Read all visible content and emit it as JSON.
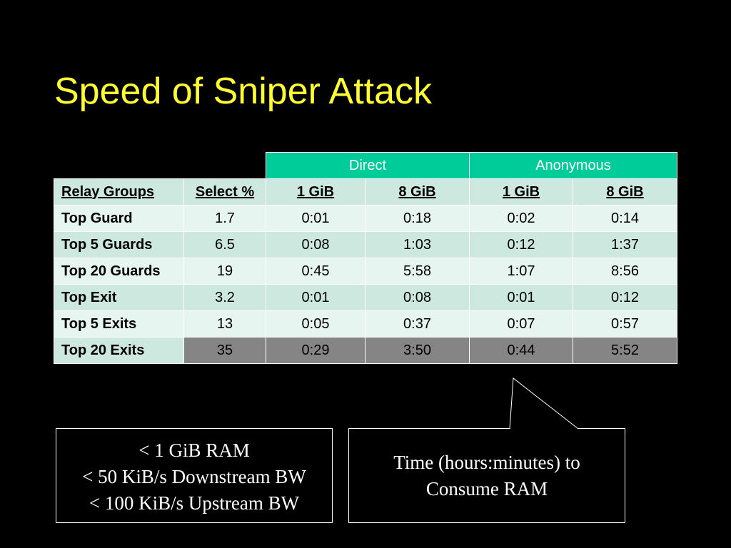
{
  "slide": {
    "title": "Speed of Sniper Attack"
  },
  "table": {
    "group_headers": [
      "Direct",
      "Anonymous"
    ],
    "column_headers": [
      "Relay Groups",
      "Select %",
      "1 GiB",
      "8 GiB",
      "1 GiB",
      "8 GiB"
    ],
    "rows": [
      [
        "Top Guard",
        "1.7",
        "0:01",
        "0:18",
        "0:02",
        "0:14"
      ],
      [
        "Top 5 Guards",
        "6.5",
        "0:08",
        "1:03",
        "0:12",
        "1:37"
      ],
      [
        "Top 20 Guards",
        "19",
        "0:45",
        "5:58",
        "1:07",
        "8:56"
      ],
      [
        "Top Exit",
        "3.2",
        "0:01",
        "0:08",
        "0:01",
        "0:12"
      ],
      [
        "Top 5 Exits",
        "13",
        "0:05",
        "0:37",
        "0:07",
        "0:57"
      ],
      [
        "Top 20 Exits",
        "35",
        "0:29",
        "3:50",
        "0:44",
        "5:52"
      ]
    ]
  },
  "callouts": {
    "ram_box": {
      "lines": [
        "< 1 GiB RAM",
        "< 50 KiB/s Downstream BW",
        "< 100 KiB/s Upstream BW"
      ]
    },
    "time_box": {
      "lines": [
        "Time (hours:minutes) to",
        "Consume RAM"
      ]
    }
  },
  "colors": {
    "background": "#000000",
    "title": "#ffff33",
    "group_header": "#00cc99",
    "row_light": "#e6f5ef",
    "row_dark": "#cde9df",
    "highlight_gray": "#858585"
  }
}
